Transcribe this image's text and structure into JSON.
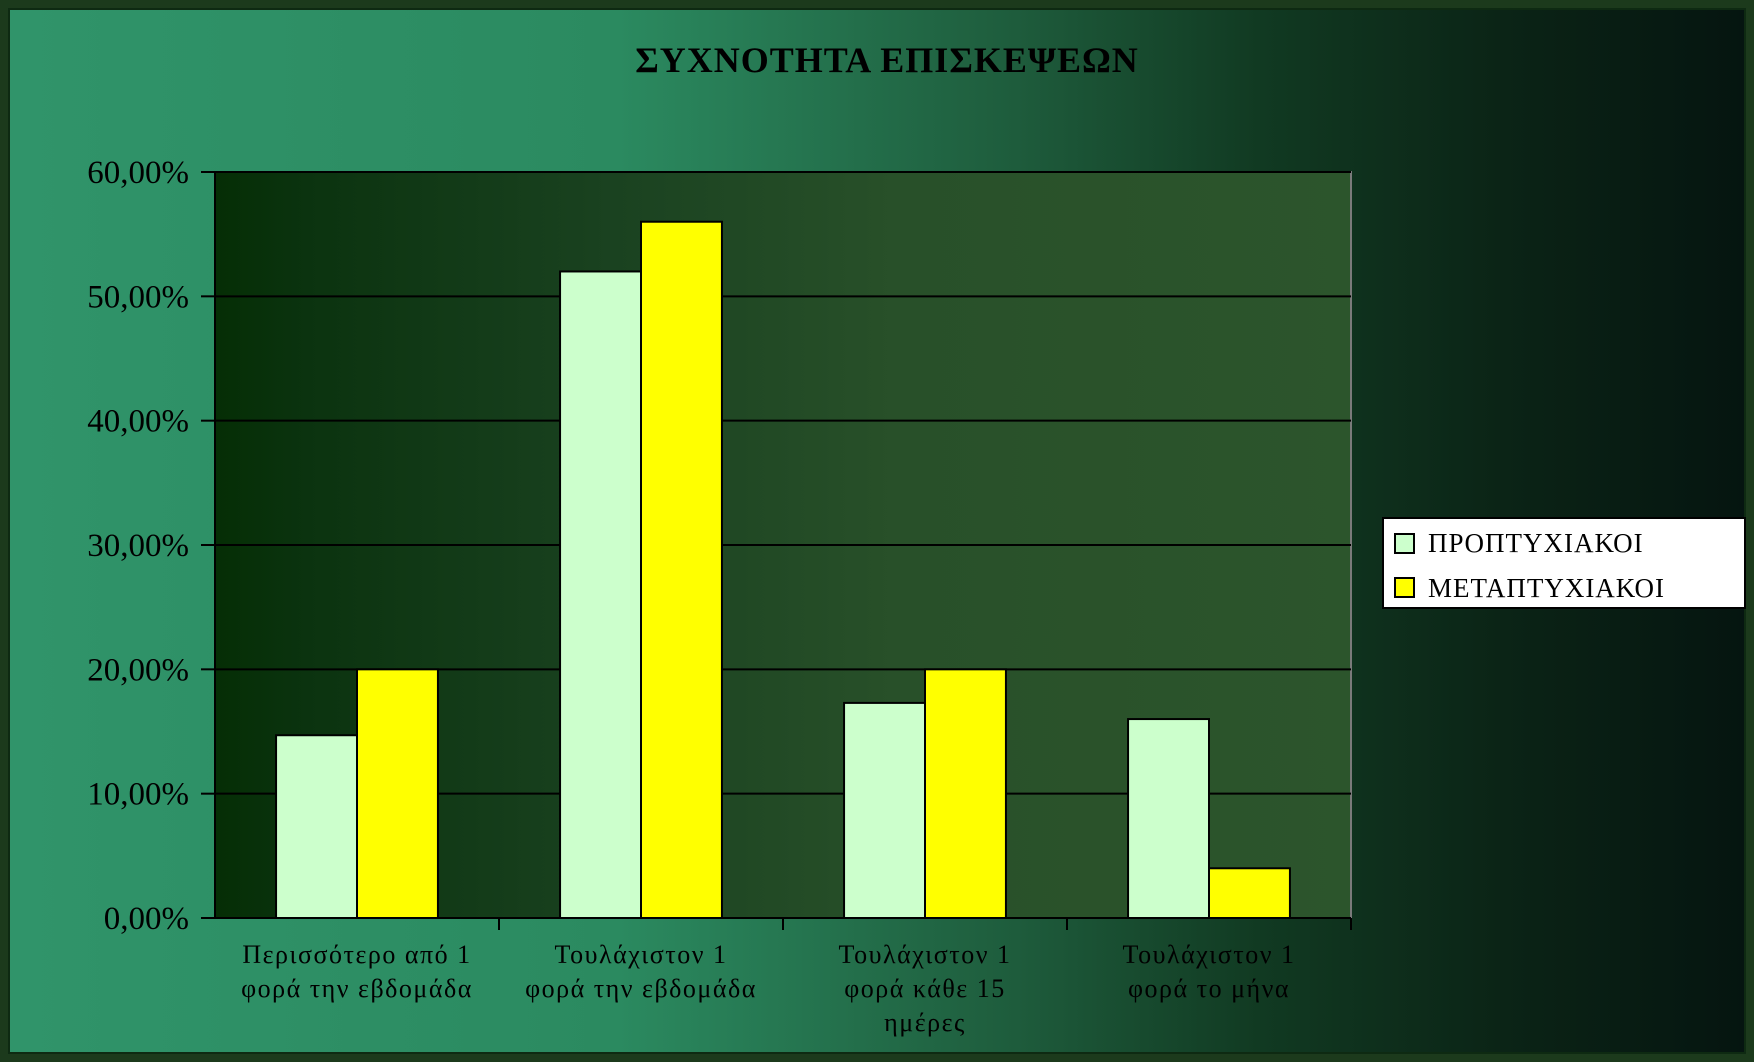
{
  "chart_data": {
    "type": "bar",
    "title": "ΣΥΧΝΟΤΗΤΑ ΕΠΙΣΚΕΨΕΩΝ",
    "xlabel": "",
    "ylabel": "",
    "ylim": [
      0,
      60
    ],
    "y_ticks": [
      "0,00%",
      "10,00%",
      "20,00%",
      "30,00%",
      "40,00%",
      "50,00%",
      "60,00%"
    ],
    "categories": [
      [
        "Περισσότερο από 1",
        "φορά την εβδομάδα"
      ],
      [
        "Τουλάχιστον 1",
        "φορά την εβδομάδα"
      ],
      [
        "Τουλάχιστον 1",
        "φορά κάθε 15",
        "ημέρες"
      ],
      [
        "Τουλάχιστον 1",
        "φορά το μήνα"
      ]
    ],
    "series": [
      {
        "name": "ΠΡΟΠΤΥΧΙΑΚΟΙ",
        "color": "#ccffcc",
        "values": [
          14.7,
          52.0,
          17.3,
          16.0
        ]
      },
      {
        "name": "ΜΕΤΑΠΤΥΧΙΑΚΟΙ",
        "color": "#ffff00",
        "values": [
          20.0,
          56.0,
          20.0,
          4.0
        ]
      }
    ],
    "grid": true,
    "legend_position": "right"
  }
}
